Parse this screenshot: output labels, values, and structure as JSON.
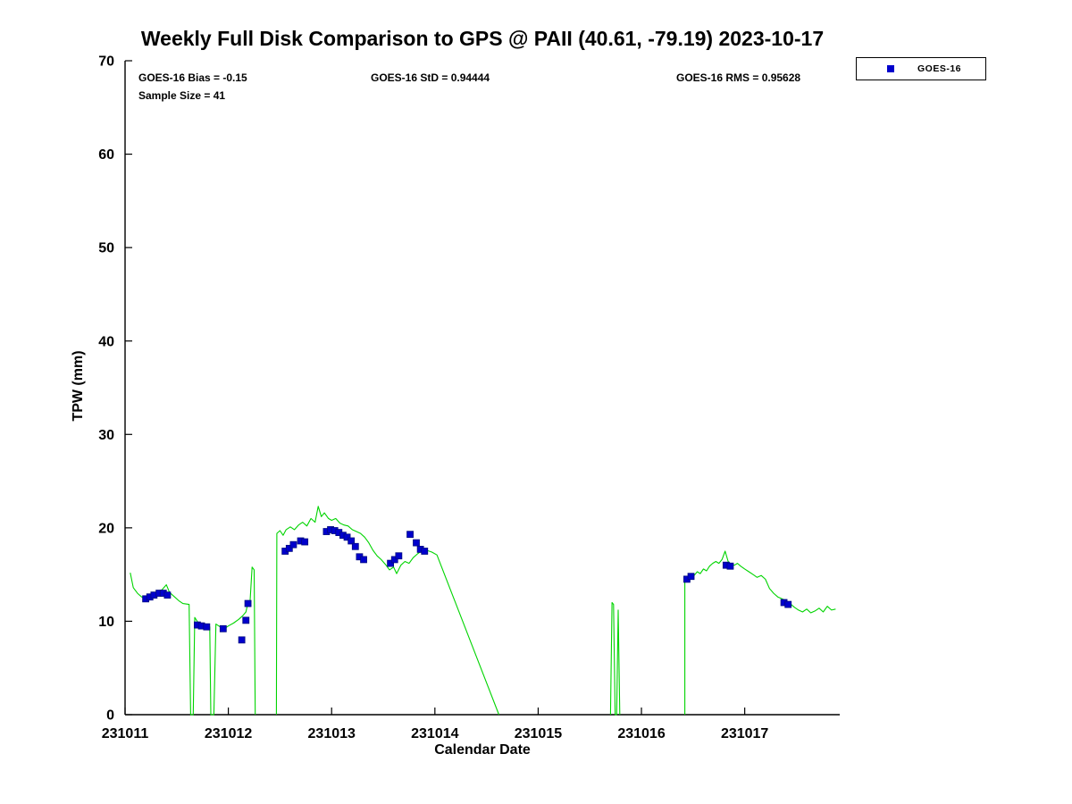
{
  "chart_data": {
    "type": "line",
    "title": "Weekly Full Disk Comparison to GPS @ PAII (40.61, -79.19) 2023-10-17",
    "xlabel": "Calendar Date",
    "ylabel": "TPW (mm)",
    "xlim": [
      231011,
      231017.92
    ],
    "ylim": [
      0,
      70
    ],
    "grid": false,
    "x_ticks": [
      {
        "value": 231011,
        "label": "231011"
      },
      {
        "value": 231012,
        "label": "231012"
      },
      {
        "value": 231013,
        "label": "231013"
      },
      {
        "value": 231014,
        "label": "231014"
      },
      {
        "value": 231015,
        "label": "231015"
      },
      {
        "value": 231016,
        "label": "231016"
      },
      {
        "value": 231017,
        "label": "231017"
      }
    ],
    "y_ticks": [
      {
        "value": 0,
        "label": "0"
      },
      {
        "value": 10,
        "label": "10"
      },
      {
        "value": 20,
        "label": "20"
      },
      {
        "value": 30,
        "label": "30"
      },
      {
        "value": 40,
        "label": "40"
      },
      {
        "value": 50,
        "label": "50"
      },
      {
        "value": 60,
        "label": "60"
      },
      {
        "value": 70,
        "label": "70"
      }
    ],
    "annotations": {
      "bias_label": "GOES-16 Bias = -0.15",
      "std_label": "GOES-16 StD = 0.94444",
      "rms_label": "GOES-16 RMS = 0.95628",
      "sample_label": "Sample Size = 41",
      "bias": -0.15,
      "std": 0.94444,
      "rms": 0.95628,
      "sample_size": 41
    },
    "legend": {
      "position": "top-right-outside",
      "entries": [
        {
          "label": "GOES-16",
          "marker": "square",
          "color": "#0000cc"
        }
      ]
    },
    "colors": {
      "line": "#00d400",
      "marker": "#0000cc",
      "marker_edge": "#000a80",
      "axis": "#000000"
    },
    "series": [
      {
        "name": "GPS",
        "type": "line",
        "color": "#00d400",
        "segments": [
          [
            [
              231011.05,
              15.2
            ],
            [
              231011.08,
              13.6
            ],
            [
              231011.12,
              13.0
            ],
            [
              231011.16,
              12.6
            ],
            [
              231011.2,
              12.5
            ],
            [
              231011.24,
              12.8
            ],
            [
              231011.28,
              12.7
            ],
            [
              231011.32,
              13.0
            ],
            [
              231011.36,
              13.4
            ],
            [
              231011.4,
              13.9
            ],
            [
              231011.43,
              13.1
            ],
            [
              231011.47,
              12.7
            ],
            [
              231011.52,
              12.2
            ],
            [
              231011.56,
              11.9
            ],
            [
              231011.62,
              11.8
            ],
            [
              231011.635,
              0
            ],
            [
              231011.66,
              0
            ],
            [
              231011.675,
              10.4
            ],
            [
              231011.71,
              9.8
            ],
            [
              231011.75,
              9.6
            ],
            [
              231011.79,
              9.5
            ],
            [
              231011.82,
              9.4
            ],
            [
              231011.83,
              0
            ],
            [
              231011.86,
              0
            ],
            [
              231011.88,
              9.7
            ],
            [
              231011.92,
              9.4
            ],
            [
              231011.96,
              9.2
            ],
            [
              231012.0,
              9.5
            ],
            [
              231012.05,
              9.8
            ],
            [
              231012.1,
              10.2
            ],
            [
              231012.14,
              10.6
            ],
            [
              231012.17,
              11.0
            ],
            [
              231012.19,
              12.0
            ],
            [
              231012.21,
              12.1
            ],
            [
              231012.23,
              15.8
            ],
            [
              231012.25,
              15.5
            ],
            [
              231012.26,
              0
            ]
          ],
          [
            [
              231012.465,
              0
            ],
            [
              231012.47,
              19.4
            ],
            [
              231012.5,
              19.7
            ],
            [
              231012.53,
              19.2
            ],
            [
              231012.56,
              19.8
            ],
            [
              231012.6,
              20.1
            ],
            [
              231012.64,
              19.8
            ],
            [
              231012.68,
              20.3
            ],
            [
              231012.72,
              20.6
            ],
            [
              231012.76,
              20.2
            ],
            [
              231012.8,
              21.0
            ],
            [
              231012.84,
              20.6
            ],
            [
              231012.87,
              22.3
            ],
            [
              231012.9,
              21.2
            ],
            [
              231012.93,
              21.6
            ],
            [
              231012.97,
              21.0
            ],
            [
              231013.0,
              20.8
            ],
            [
              231013.04,
              21.0
            ],
            [
              231013.08,
              20.5
            ],
            [
              231013.12,
              20.3
            ],
            [
              231013.16,
              20.2
            ],
            [
              231013.2,
              19.8
            ],
            [
              231013.24,
              19.6
            ],
            [
              231013.28,
              19.4
            ],
            [
              231013.32,
              19.0
            ],
            [
              231013.36,
              18.4
            ],
            [
              231013.4,
              17.6
            ],
            [
              231013.44,
              17.0
            ],
            [
              231013.48,
              16.6
            ],
            [
              231013.52,
              16.1
            ],
            [
              231013.56,
              15.5
            ],
            [
              231013.6,
              15.8
            ],
            [
              231013.63,
              15.1
            ],
            [
              231013.67,
              16.0
            ],
            [
              231013.71,
              16.4
            ],
            [
              231013.75,
              16.2
            ],
            [
              231013.79,
              16.8
            ],
            [
              231013.83,
              17.2
            ],
            [
              231013.87,
              17.5
            ],
            [
              231013.92,
              17.6
            ],
            [
              231013.97,
              17.4
            ],
            [
              231014.02,
              17.1
            ],
            [
              231014.62,
              0
            ]
          ],
          [
            [
              231015.7,
              0
            ],
            [
              231015.715,
              12.0
            ],
            [
              231015.73,
              11.8
            ],
            [
              231015.745,
              0
            ],
            [
              231015.76,
              0
            ],
            [
              231015.775,
              11.2
            ],
            [
              231015.79,
              0
            ]
          ],
          [
            [
              231016.42,
              0
            ],
            [
              231016.42,
              14.2
            ],
            [
              231016.45,
              14.8
            ],
            [
              231016.48,
              15.0
            ],
            [
              231016.51,
              14.9
            ],
            [
              231016.54,
              15.3
            ],
            [
              231016.57,
              15.1
            ],
            [
              231016.6,
              15.6
            ],
            [
              231016.63,
              15.4
            ],
            [
              231016.66,
              15.9
            ],
            [
              231016.69,
              16.2
            ],
            [
              231016.72,
              16.4
            ],
            [
              231016.75,
              16.2
            ],
            [
              231016.78,
              16.6
            ],
            [
              231016.81,
              17.5
            ],
            [
              231016.84,
              16.4
            ],
            [
              231016.87,
              16.1
            ],
            [
              231016.9,
              16.0
            ],
            [
              231016.93,
              16.2
            ],
            [
              231016.96,
              15.9
            ],
            [
              231017.0,
              15.6
            ],
            [
              231017.04,
              15.3
            ],
            [
              231017.08,
              15.0
            ],
            [
              231017.12,
              14.7
            ],
            [
              231017.16,
              14.9
            ],
            [
              231017.2,
              14.5
            ],
            [
              231017.24,
              13.5
            ],
            [
              231017.28,
              13.0
            ],
            [
              231017.32,
              12.6
            ],
            [
              231017.36,
              12.4
            ],
            [
              231017.4,
              12.2
            ],
            [
              231017.44,
              11.9
            ],
            [
              231017.48,
              11.5
            ],
            [
              231017.52,
              11.2
            ],
            [
              231017.56,
              11.0
            ],
            [
              231017.6,
              11.3
            ],
            [
              231017.64,
              10.9
            ],
            [
              231017.68,
              11.1
            ],
            [
              231017.72,
              11.4
            ],
            [
              231017.76,
              11.0
            ],
            [
              231017.8,
              11.6
            ],
            [
              231017.84,
              11.2
            ],
            [
              231017.88,
              11.3
            ]
          ]
        ]
      },
      {
        "name": "GOES-16",
        "type": "scatter",
        "marker": "square",
        "color": "#0000cc",
        "points": [
          [
            231011.2,
            12.4
          ],
          [
            231011.24,
            12.6
          ],
          [
            231011.28,
            12.8
          ],
          [
            231011.33,
            13.0
          ],
          [
            231011.37,
            13.0
          ],
          [
            231011.41,
            12.8
          ],
          [
            231011.7,
            9.6
          ],
          [
            231011.74,
            9.5
          ],
          [
            231011.79,
            9.4
          ],
          [
            231011.95,
            9.2
          ],
          [
            231012.13,
            8.0
          ],
          [
            231012.17,
            10.1
          ],
          [
            231012.19,
            11.9
          ],
          [
            231012.55,
            17.5
          ],
          [
            231012.59,
            17.8
          ],
          [
            231012.63,
            18.2
          ],
          [
            231012.7,
            18.6
          ],
          [
            231012.74,
            18.5
          ],
          [
            231012.95,
            19.6
          ],
          [
            231012.99,
            19.8
          ],
          [
            231013.03,
            19.7
          ],
          [
            231013.07,
            19.5
          ],
          [
            231013.11,
            19.2
          ],
          [
            231013.15,
            19.0
          ],
          [
            231013.19,
            18.6
          ],
          [
            231013.23,
            18.0
          ],
          [
            231013.27,
            16.9
          ],
          [
            231013.31,
            16.6
          ],
          [
            231013.57,
            16.2
          ],
          [
            231013.61,
            16.6
          ],
          [
            231013.65,
            17.0
          ],
          [
            231013.76,
            19.3
          ],
          [
            231013.82,
            18.4
          ],
          [
            231013.86,
            17.7
          ],
          [
            231013.9,
            17.5
          ],
          [
            231016.44,
            14.5
          ],
          [
            231016.48,
            14.8
          ],
          [
            231016.82,
            16.0
          ],
          [
            231016.86,
            15.9
          ],
          [
            231017.38,
            12.0
          ],
          [
            231017.42,
            11.8
          ]
        ]
      }
    ]
  }
}
